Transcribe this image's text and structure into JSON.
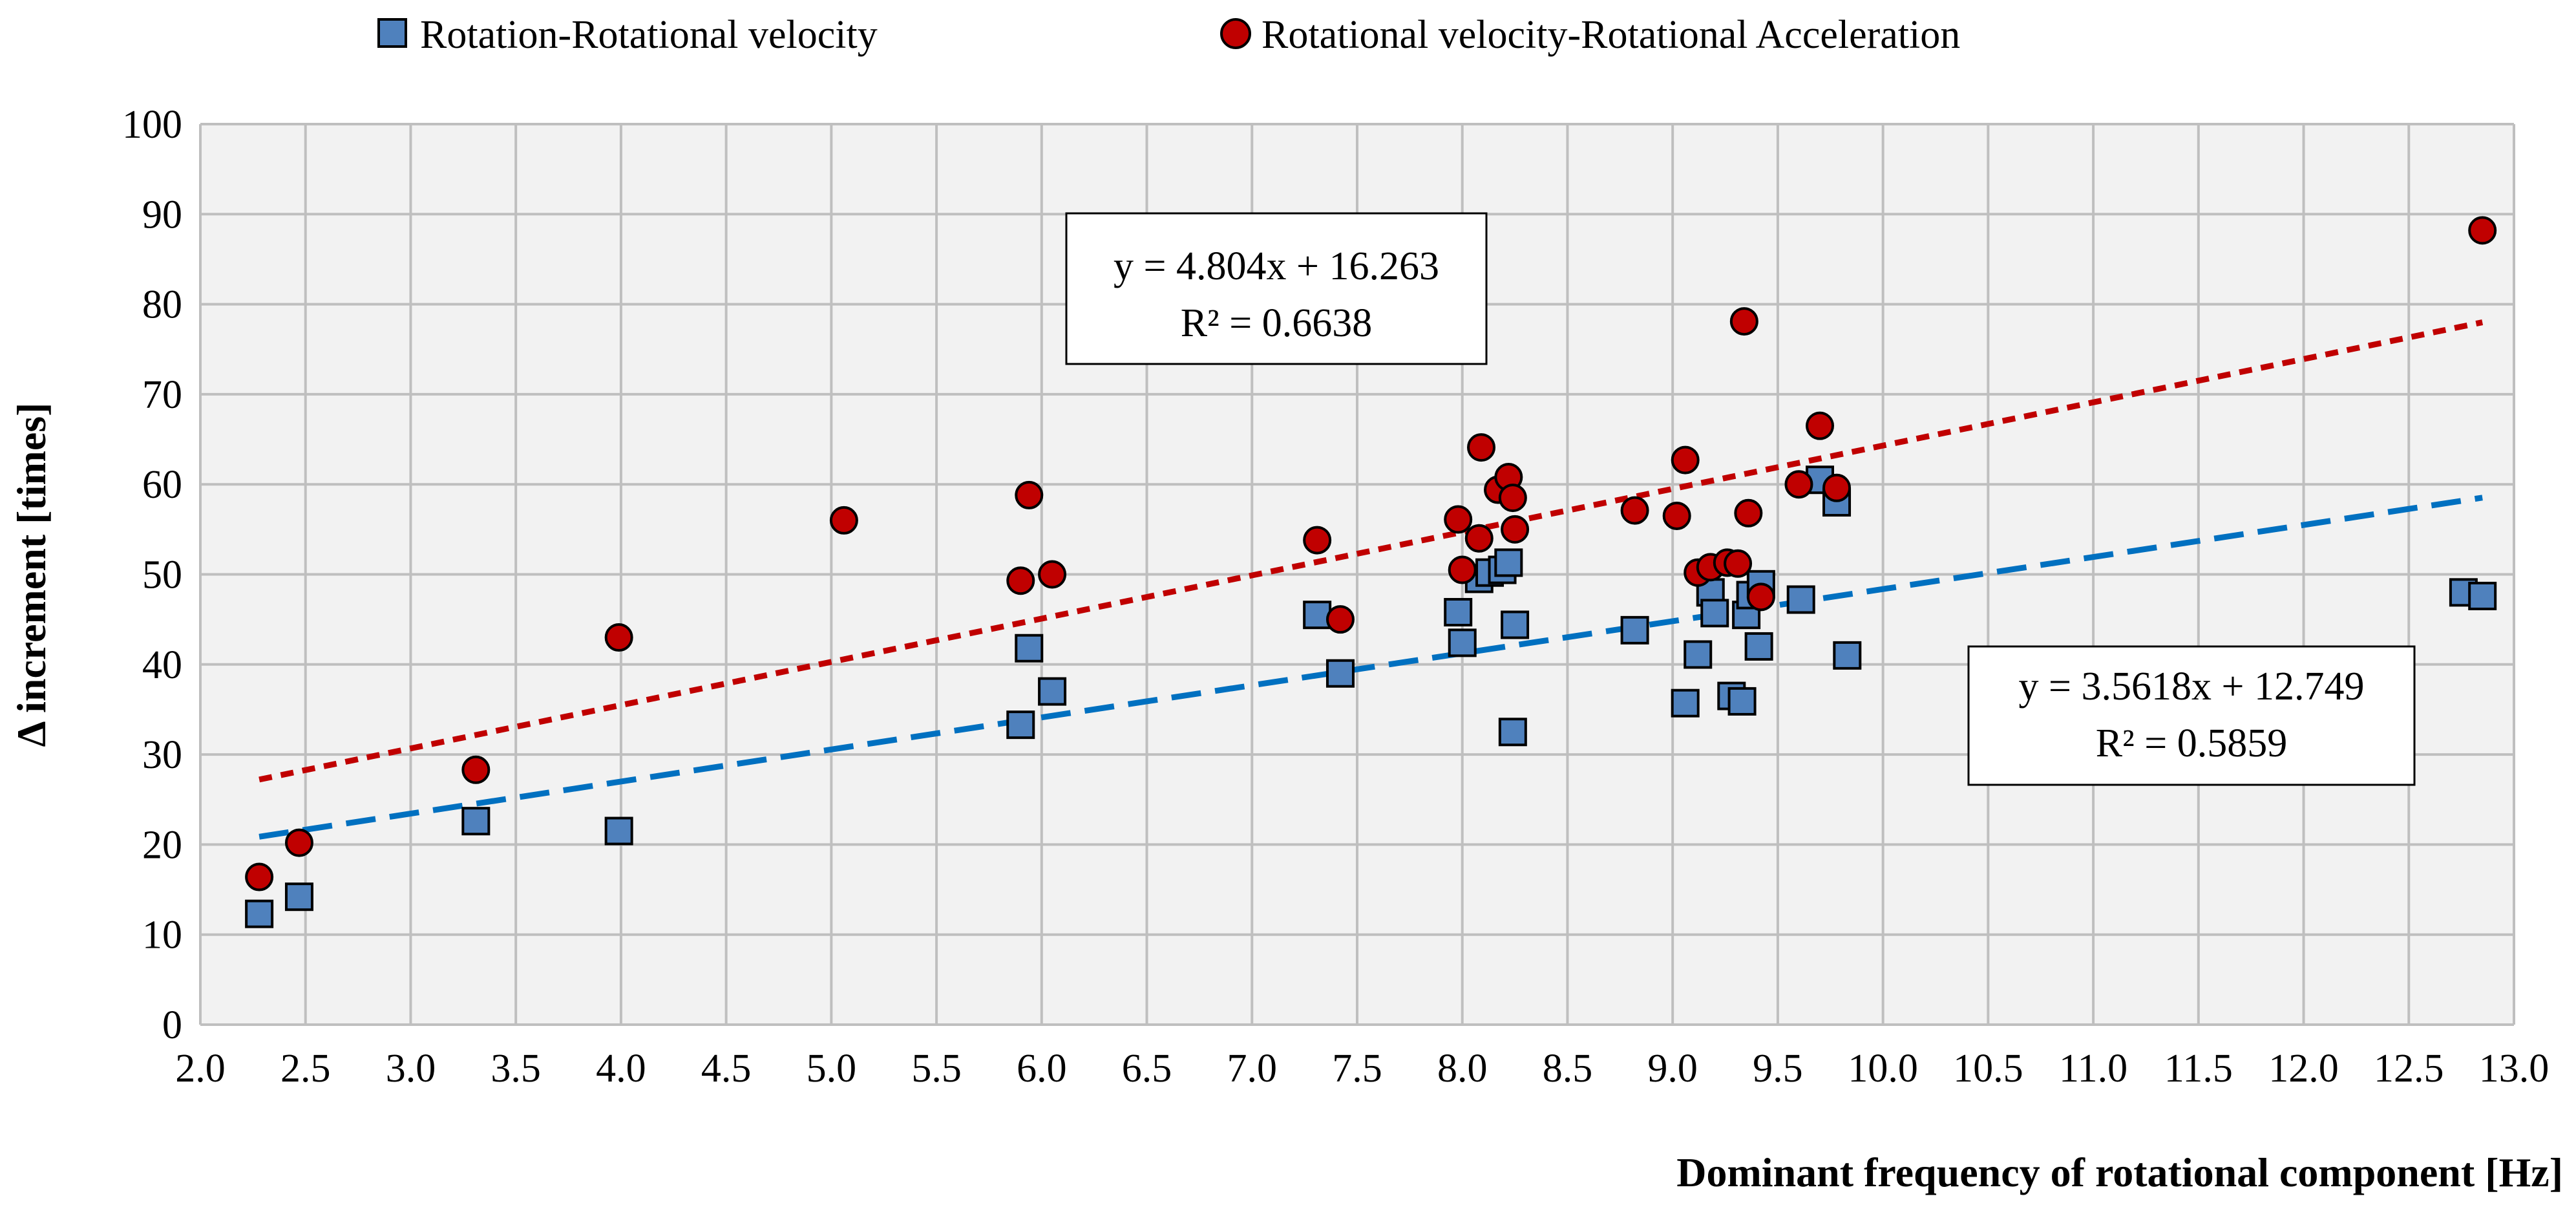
{
  "chart_data": {
    "type": "scatter",
    "title": "",
    "xlabel": "Dominant frequency of rotational component [Hz]",
    "ylabel": "Δ increment  [times]",
    "xlim": [
      2.0,
      13.0
    ],
    "ylim": [
      0,
      100
    ],
    "xstep": 0.5,
    "ystep": 10,
    "xticks": [
      "2.0",
      "2.5",
      "3.0",
      "3.5",
      "4.0",
      "4.5",
      "5.0",
      "5.5",
      "6.0",
      "6.5",
      "7.0",
      "7.5",
      "8.0",
      "8.5",
      "9.0",
      "9.5",
      "10.0",
      "10.5",
      "11.0",
      "11.5",
      "12.0",
      "12.5",
      "13.0"
    ],
    "yticks": [
      "0",
      "10",
      "20",
      "30",
      "40",
      "50",
      "60",
      "70",
      "80",
      "90",
      "100"
    ],
    "grid": true,
    "legend_position": "top",
    "series": [
      {
        "name": "Rotation-Rotational velocity",
        "marker": "square",
        "color": "#4F81BD",
        "edge_color": "#000000",
        "points": [
          [
            2.28,
            12.3
          ],
          [
            2.47,
            14.2
          ],
          [
            3.31,
            22.6
          ],
          [
            3.99,
            21.5
          ],
          [
            5.9,
            33.3
          ],
          [
            5.94,
            41.8
          ],
          [
            6.05,
            37.0
          ],
          [
            7.31,
            45.5
          ],
          [
            7.42,
            39.0
          ],
          [
            7.98,
            45.8
          ],
          [
            8.0,
            42.4
          ],
          [
            8.08,
            49.5
          ],
          [
            8.13,
            50.2
          ],
          [
            8.19,
            50.5
          ],
          [
            8.22,
            51.3
          ],
          [
            8.25,
            44.4
          ],
          [
            8.24,
            32.5
          ],
          [
            8.82,
            43.8
          ],
          [
            9.06,
            35.7
          ],
          [
            9.12,
            41.1
          ],
          [
            9.18,
            48.0
          ],
          [
            9.2,
            45.7
          ],
          [
            9.28,
            36.5
          ],
          [
            9.33,
            35.9
          ],
          [
            9.35,
            45.5
          ],
          [
            9.37,
            47.7
          ],
          [
            9.41,
            42.0
          ],
          [
            9.42,
            48.9
          ],
          [
            9.61,
            47.2
          ],
          [
            9.7,
            60.5
          ],
          [
            9.78,
            58.0
          ],
          [
            9.83,
            41.0
          ],
          [
            12.76,
            48.0
          ],
          [
            12.85,
            47.6
          ]
        ],
        "trend": {
          "type": "linear",
          "slope": 3.5618,
          "intercept": 12.749,
          "x_range": [
            2.28,
            12.85
          ],
          "color": "#0070C0",
          "style": "dashed-long"
        },
        "equation": "y = 3.5618x + 12.749",
        "r2": "R² = 0.5859"
      },
      {
        "name": "Rotational velocity-Rotational Acceleration",
        "marker": "circle",
        "color": "#C00000",
        "edge_color": "#000000",
        "points": [
          [
            2.28,
            16.4
          ],
          [
            2.47,
            20.2
          ],
          [
            3.31,
            28.3
          ],
          [
            3.99,
            43.0
          ],
          [
            5.06,
            56.0
          ],
          [
            5.9,
            49.3
          ],
          [
            5.94,
            58.8
          ],
          [
            6.05,
            50.0
          ],
          [
            7.31,
            53.8
          ],
          [
            7.42,
            45.0
          ],
          [
            7.98,
            56.1
          ],
          [
            8.0,
            50.5
          ],
          [
            8.08,
            54.0
          ],
          [
            8.09,
            64.1
          ],
          [
            8.17,
            59.4
          ],
          [
            8.22,
            60.8
          ],
          [
            8.24,
            58.5
          ],
          [
            8.25,
            55.0
          ],
          [
            8.82,
            57.1
          ],
          [
            9.02,
            56.5
          ],
          [
            9.06,
            62.7
          ],
          [
            9.12,
            50.2
          ],
          [
            9.18,
            50.8
          ],
          [
            9.26,
            51.3
          ],
          [
            9.31,
            51.2
          ],
          [
            9.34,
            78.1
          ],
          [
            9.36,
            56.8
          ],
          [
            9.42,
            47.5
          ],
          [
            9.6,
            60.0
          ],
          [
            9.7,
            66.5
          ],
          [
            9.78,
            59.6
          ],
          [
            12.85,
            88.2
          ]
        ],
        "trend": {
          "type": "linear",
          "slope": 4.804,
          "intercept": 16.263,
          "x_range": [
            2.28,
            12.85
          ],
          "color": "#C00000",
          "style": "dashed-short"
        },
        "equation": "y = 4.804x + 16.263",
        "r2": "R² = 0.6638"
      }
    ]
  }
}
